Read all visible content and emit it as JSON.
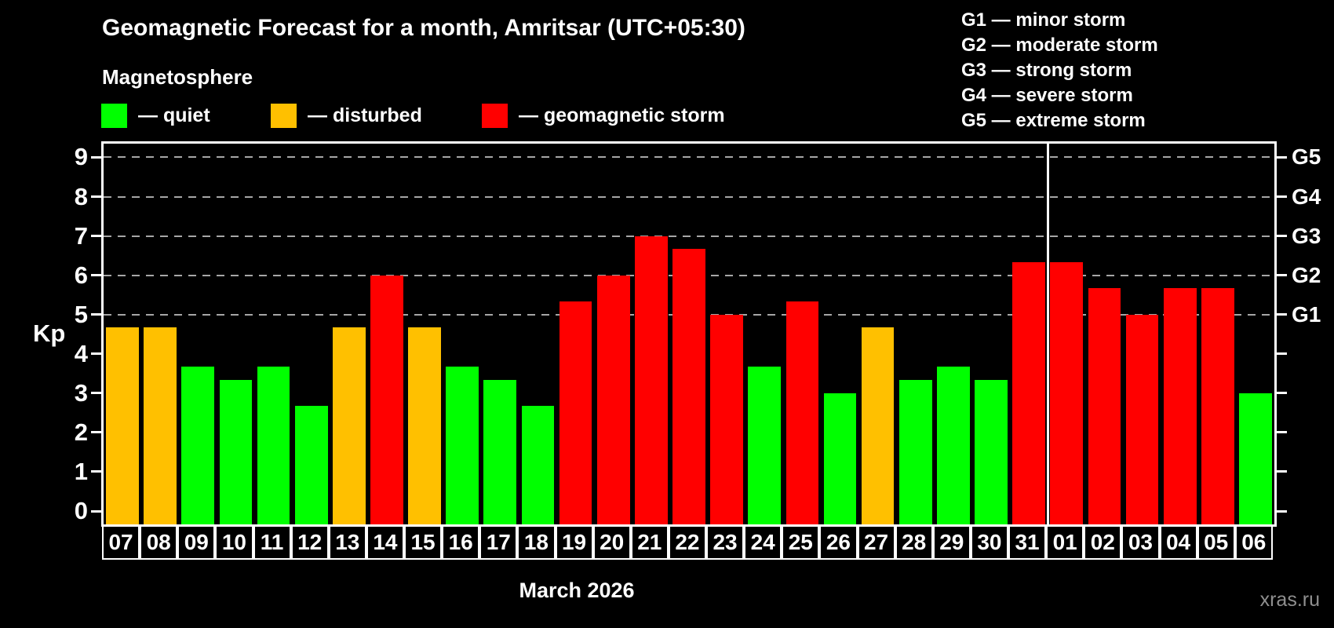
{
  "header": {
    "title": "Geomagnetic Forecast for a month, Amritsar (UTC+05:30)",
    "subtitle": "Magnetosphere",
    "legend": [
      {
        "key": "quiet",
        "label": "— quiet",
        "color": "#00ff00"
      },
      {
        "key": "disturbed",
        "label": "— disturbed",
        "color": "#ffc000"
      },
      {
        "key": "storm",
        "label": "— geomagnetic storm",
        "color": "#ff0000"
      }
    ],
    "g_legend": [
      "G1 — minor storm",
      "G2 — moderate storm",
      "G3 — strong storm",
      "G4 — severe storm",
      "G5 — extreme storm"
    ]
  },
  "colors": {
    "quiet": "#00ff00",
    "disturbed": "#ffc000",
    "storm": "#ff0000",
    "grid": "#a6a6a6",
    "axis": "#ffffff",
    "watermark": "#8f8f8f"
  },
  "chart_data": {
    "type": "bar",
    "title": "Geomagnetic Forecast for a month, Amritsar (UTC+05:30)",
    "ylabel": "Kp",
    "xlabel": "March 2026",
    "ylim": [
      0,
      9
    ],
    "grid": "dashed horizontal at Kp 5-9 only",
    "legend_position": "top",
    "yticks": [
      0,
      1,
      2,
      3,
      4,
      5,
      6,
      7,
      8,
      9
    ],
    "gridlines_at": [
      5,
      6,
      7,
      8,
      9
    ],
    "right_axis": [
      {
        "label": "G5",
        "kp": 9
      },
      {
        "label": "G4",
        "kp": 8
      },
      {
        "label": "G3",
        "kp": 7
      },
      {
        "label": "G2",
        "kp": 6
      },
      {
        "label": "G1",
        "kp": 5
      }
    ],
    "month_separator_after_index": 24,
    "categories": [
      "07",
      "08",
      "09",
      "10",
      "11",
      "12",
      "13",
      "14",
      "15",
      "16",
      "17",
      "18",
      "19",
      "20",
      "21",
      "22",
      "23",
      "24",
      "25",
      "26",
      "27",
      "28",
      "29",
      "30",
      "31",
      "01",
      "02",
      "03",
      "04",
      "05",
      "06"
    ],
    "values": [
      4.67,
      4.67,
      3.67,
      3.33,
      3.67,
      2.67,
      4.67,
      6,
      4.67,
      3.67,
      3.33,
      2.67,
      5.33,
      6,
      7,
      6.67,
      5,
      3.67,
      5.33,
      3,
      4.67,
      3.33,
      3.67,
      3.33,
      6.33,
      6.33,
      5.67,
      5,
      5.67,
      5.67,
      3
    ],
    "bars": [
      {
        "day": "07",
        "kp": 4.67,
        "status": "disturbed"
      },
      {
        "day": "08",
        "kp": 4.67,
        "status": "disturbed"
      },
      {
        "day": "09",
        "kp": 3.67,
        "status": "quiet"
      },
      {
        "day": "10",
        "kp": 3.33,
        "status": "quiet"
      },
      {
        "day": "11",
        "kp": 3.67,
        "status": "quiet"
      },
      {
        "day": "12",
        "kp": 2.67,
        "status": "quiet"
      },
      {
        "day": "13",
        "kp": 4.67,
        "status": "disturbed"
      },
      {
        "day": "14",
        "kp": 6,
        "status": "storm"
      },
      {
        "day": "15",
        "kp": 4.67,
        "status": "disturbed"
      },
      {
        "day": "16",
        "kp": 3.67,
        "status": "quiet"
      },
      {
        "day": "17",
        "kp": 3.33,
        "status": "quiet"
      },
      {
        "day": "18",
        "kp": 2.67,
        "status": "quiet"
      },
      {
        "day": "19",
        "kp": 5.33,
        "status": "storm"
      },
      {
        "day": "20",
        "kp": 6,
        "status": "storm"
      },
      {
        "day": "21",
        "kp": 7,
        "status": "storm"
      },
      {
        "day": "22",
        "kp": 6.67,
        "status": "storm"
      },
      {
        "day": "23",
        "kp": 5,
        "status": "storm"
      },
      {
        "day": "24",
        "kp": 3.67,
        "status": "quiet"
      },
      {
        "day": "25",
        "kp": 5.33,
        "status": "storm"
      },
      {
        "day": "26",
        "kp": 3,
        "status": "quiet"
      },
      {
        "day": "27",
        "kp": 4.67,
        "status": "disturbed"
      },
      {
        "day": "28",
        "kp": 3.33,
        "status": "quiet"
      },
      {
        "day": "29",
        "kp": 3.67,
        "status": "quiet"
      },
      {
        "day": "30",
        "kp": 3.33,
        "status": "quiet"
      },
      {
        "day": "31",
        "kp": 6.33,
        "status": "storm"
      },
      {
        "day": "01",
        "kp": 6.33,
        "status": "storm"
      },
      {
        "day": "02",
        "kp": 5.67,
        "status": "storm"
      },
      {
        "day": "03",
        "kp": 5,
        "status": "storm"
      },
      {
        "day": "04",
        "kp": 5.67,
        "status": "storm"
      },
      {
        "day": "05",
        "kp": 5.67,
        "status": "storm"
      },
      {
        "day": "06",
        "kp": 3,
        "status": "quiet"
      }
    ]
  },
  "footer": {
    "caption": "March 2026",
    "watermark": "xras.ru"
  }
}
